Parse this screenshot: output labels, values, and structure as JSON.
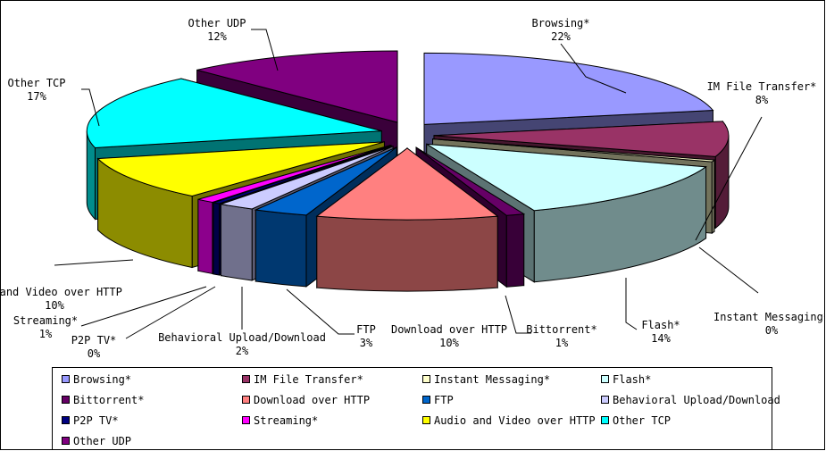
{
  "chart_data": {
    "type": "pie",
    "style": "3d-exploded",
    "slices": [
      {
        "name": "Browsing*",
        "value": 22,
        "pct_label": "22%",
        "color": "#9999FF"
      },
      {
        "name": "IM File Transfer*",
        "value": 8,
        "pct_label": "8%",
        "color": "#993366"
      },
      {
        "name": "Instant Messaging*",
        "value": 0.4,
        "pct_label": "0%",
        "color": "#FFFFCC"
      },
      {
        "name": "Flash*",
        "value": 14,
        "pct_label": "14%",
        "color": "#CCFFFF"
      },
      {
        "name": "Bittorrent*",
        "value": 1,
        "pct_label": "1%",
        "color": "#660066"
      },
      {
        "name": "Download over HTTP",
        "value": 10,
        "pct_label": "10%",
        "color": "#FF8080"
      },
      {
        "name": "FTP",
        "value": 3,
        "pct_label": "3%",
        "color": "#0066CC"
      },
      {
        "name": "Behavioral Upload/Download",
        "value": 2,
        "pct_label": "2%",
        "color": "#CCCCFF"
      },
      {
        "name": "P2P TV*",
        "value": 0.4,
        "pct_label": "0%",
        "color": "#000080"
      },
      {
        "name": "Streaming*",
        "value": 1,
        "pct_label": "1%",
        "color": "#FF00FF"
      },
      {
        "name": "Audio and Video over HTTP",
        "value": 10,
        "pct_label": "10%",
        "color": "#FFFF00",
        "label_text": "o and Video over HTTP"
      },
      {
        "name": "Other TCP",
        "value": 17,
        "pct_label": "17%",
        "color": "#00FFFF"
      },
      {
        "name": "Other UDP",
        "value": 12,
        "pct_label": "12%",
        "color": "#800080"
      }
    ],
    "legend_position": "bottom"
  }
}
